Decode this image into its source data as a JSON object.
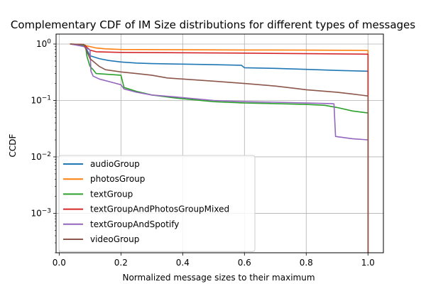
{
  "chart_data": {
    "type": "line",
    "title": "Complementary CDF of IM Size distributions for different types of messages",
    "xlabel": "Normalized message sizes to their maximum",
    "ylabel": "CCDF",
    "x_scale": "linear",
    "y_scale": "log",
    "xlim": [
      -0.01,
      1.05
    ],
    "ylim": [
      0.0002,
      1.5
    ],
    "grid": true,
    "legend_position": "lower-left",
    "x_ticks": [
      {
        "value": 0.0,
        "label": "0.0"
      },
      {
        "value": 0.2,
        "label": "0.2"
      },
      {
        "value": 0.4,
        "label": "0.4"
      },
      {
        "value": 0.6,
        "label": "0.6"
      },
      {
        "value": 0.8,
        "label": "0.8"
      },
      {
        "value": 1.0,
        "label": "1.0"
      }
    ],
    "y_ticks": [
      {
        "value": 0.001,
        "base": "10",
        "exp": "−3"
      },
      {
        "value": 0.01,
        "base": "10",
        "exp": "−2"
      },
      {
        "value": 0.1,
        "base": "10",
        "exp": "−1"
      },
      {
        "value": 1.0,
        "base": "10",
        "exp": "0"
      }
    ],
    "series": [
      {
        "name": "audioGroup",
        "color": "#1f77b4",
        "points": [
          [
            0.035,
            1.0
          ],
          [
            0.07,
            0.95
          ],
          [
            0.085,
            0.88
          ],
          [
            0.1,
            0.62
          ],
          [
            0.13,
            0.55
          ],
          [
            0.16,
            0.51
          ],
          [
            0.2,
            0.48
          ],
          [
            0.25,
            0.46
          ],
          [
            0.3,
            0.45
          ],
          [
            0.4,
            0.44
          ],
          [
            0.5,
            0.43
          ],
          [
            0.59,
            0.42
          ],
          [
            0.6,
            0.38
          ],
          [
            0.7,
            0.37
          ],
          [
            0.8,
            0.355
          ],
          [
            0.9,
            0.34
          ],
          [
            1.0,
            0.33
          ],
          [
            1.0,
            0.0002
          ]
        ]
      },
      {
        "name": "photosGroup",
        "color": "#ff7f0e",
        "points": [
          [
            0.035,
            1.0
          ],
          [
            0.07,
            0.98
          ],
          [
            0.1,
            0.9
          ],
          [
            0.12,
            0.85
          ],
          [
            0.15,
            0.82
          ],
          [
            0.2,
            0.8
          ],
          [
            0.4,
            0.79
          ],
          [
            0.6,
            0.785
          ],
          [
            0.8,
            0.78
          ],
          [
            1.0,
            0.77
          ],
          [
            1.0,
            0.0002
          ]
        ]
      },
      {
        "name": "textGroup",
        "color": "#2ca02c",
        "points": [
          [
            0.035,
            1.0
          ],
          [
            0.06,
            0.98
          ],
          [
            0.085,
            0.95
          ],
          [
            0.09,
            0.6
          ],
          [
            0.1,
            0.4
          ],
          [
            0.11,
            0.35
          ],
          [
            0.12,
            0.3
          ],
          [
            0.2,
            0.28
          ],
          [
            0.21,
            0.17
          ],
          [
            0.25,
            0.145
          ],
          [
            0.3,
            0.125
          ],
          [
            0.38,
            0.11
          ],
          [
            0.5,
            0.095
          ],
          [
            0.6,
            0.09
          ],
          [
            0.7,
            0.088
          ],
          [
            0.8,
            0.085
          ],
          [
            0.86,
            0.082
          ],
          [
            0.9,
            0.075
          ],
          [
            0.95,
            0.065
          ],
          [
            1.0,
            0.06
          ],
          [
            1.0,
            0.0002
          ]
        ]
      },
      {
        "name": "textGroupAndPhotosGroupMixed",
        "color": "#d62728",
        "points": [
          [
            0.035,
            1.0
          ],
          [
            0.08,
            0.98
          ],
          [
            0.1,
            0.78
          ],
          [
            0.12,
            0.73
          ],
          [
            0.2,
            0.71
          ],
          [
            0.4,
            0.7
          ],
          [
            0.6,
            0.69
          ],
          [
            0.8,
            0.675
          ],
          [
            1.0,
            0.66
          ],
          [
            1.0,
            0.0002
          ]
        ]
      },
      {
        "name": "textGroupAndSpotify",
        "color": "#9467bd",
        "points": [
          [
            0.035,
            1.0
          ],
          [
            0.06,
            0.95
          ],
          [
            0.08,
            0.9
          ],
          [
            0.1,
            0.78
          ],
          [
            0.103,
            0.33
          ],
          [
            0.11,
            0.27
          ],
          [
            0.13,
            0.24
          ],
          [
            0.17,
            0.21
          ],
          [
            0.2,
            0.19
          ],
          [
            0.21,
            0.16
          ],
          [
            0.25,
            0.14
          ],
          [
            0.3,
            0.125
          ],
          [
            0.38,
            0.115
          ],
          [
            0.5,
            0.1
          ],
          [
            0.6,
            0.095
          ],
          [
            0.7,
            0.093
          ],
          [
            0.8,
            0.09
          ],
          [
            0.88,
            0.088
          ],
          [
            0.89,
            0.087
          ],
          [
            0.895,
            0.023
          ],
          [
            0.95,
            0.021
          ],
          [
            1.0,
            0.02
          ],
          [
            1.0,
            0.0002
          ]
        ]
      },
      {
        "name": "videoGroup",
        "color": "#8c564b",
        "points": [
          [
            0.035,
            1.0
          ],
          [
            0.08,
            0.98
          ],
          [
            0.1,
            0.55
          ],
          [
            0.13,
            0.4
          ],
          [
            0.15,
            0.35
          ],
          [
            0.2,
            0.32
          ],
          [
            0.25,
            0.3
          ],
          [
            0.3,
            0.28
          ],
          [
            0.35,
            0.25
          ],
          [
            0.4,
            0.24
          ],
          [
            0.5,
            0.22
          ],
          [
            0.6,
            0.2
          ],
          [
            0.7,
            0.18
          ],
          [
            0.78,
            0.16
          ],
          [
            0.8,
            0.155
          ],
          [
            0.9,
            0.14
          ],
          [
            0.95,
            0.13
          ],
          [
            1.0,
            0.12
          ],
          [
            1.0,
            0.0002
          ]
        ]
      }
    ]
  }
}
